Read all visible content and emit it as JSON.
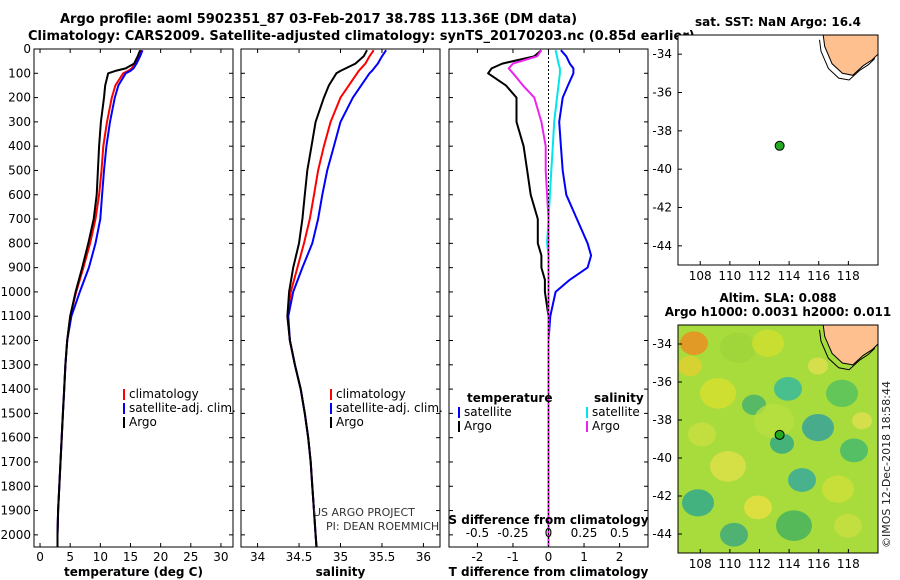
{
  "header": {
    "title_line1": "Argo profile: aoml 5902351_87 03-Feb-2017 38.78S 113.36E (DM data)",
    "title_line2": "Climatology: CARS2009. Satellite-adjusted climatology: synTS_20170203.nc (0.85d earlier)"
  },
  "watermark": "©IMOS 12-Dec-2018 18:58:44",
  "colors": {
    "climatology": "#ff0000",
    "satellite": "#0000ff",
    "argo": "#000000",
    "sal_sat": "#00e5ee",
    "sal_argo": "#ee22ee",
    "land": "#fdc08e",
    "point": "#22aa22"
  },
  "chart_data": [
    {
      "type": "line",
      "id": "temperature",
      "xlabel": "temperature (deg C)",
      "ylabel": "",
      "xlim": [
        -1,
        32
      ],
      "ylim": [
        2050,
        0
      ],
      "xticks": [
        "0",
        "5",
        "10",
        "15",
        "20",
        "25",
        "30"
      ],
      "yticks": [
        "0",
        "100",
        "200",
        "300",
        "400",
        "500",
        "600",
        "700",
        "800",
        "900",
        "1000",
        "1100",
        "1200",
        "1300",
        "1400",
        "1500",
        "1600",
        "1700",
        "1800",
        "1900",
        "2000"
      ],
      "depth": [
        5,
        30,
        60,
        80,
        90,
        100,
        150,
        200,
        300,
        400,
        500,
        600,
        700,
        800,
        900,
        1000,
        1100,
        1200,
        1300,
        1400,
        1500,
        1600,
        1700,
        1800,
        1900,
        2000,
        2050
      ],
      "series": [
        {
          "name": "climatology",
          "color_key": "climatology",
          "values": [
            16.8,
            16.3,
            15.8,
            15.2,
            14.6,
            13.8,
            12.5,
            11.9,
            11.1,
            10.5,
            10.2,
            9.8,
            9.2,
            8.3,
            7.2,
            6.0,
            5.0,
            4.5,
            4.2,
            4.0,
            3.8,
            3.6,
            3.4,
            3.2,
            3.0,
            2.9,
            2.9
          ]
        },
        {
          "name": "satellite-adj. clim.",
          "color_key": "satellite",
          "values": [
            17.0,
            16.6,
            16.0,
            15.5,
            15.0,
            14.2,
            13.0,
            12.4,
            11.6,
            11.0,
            10.6,
            10.3,
            10.0,
            9.2,
            8.1,
            6.6,
            5.2,
            4.5,
            4.2,
            4.0,
            3.8,
            3.6,
            3.4,
            3.2,
            3.0,
            2.9,
            2.9
          ]
        },
        {
          "name": "Argo",
          "color_key": "argo",
          "values": [
            16.6,
            16.2,
            15.6,
            14.2,
            12.5,
            11.3,
            10.8,
            10.6,
            10.1,
            9.8,
            9.6,
            9.4,
            8.9,
            8.0,
            7.0,
            5.9,
            5.0,
            4.5,
            4.2,
            4.0,
            3.8,
            3.6,
            3.4,
            3.2,
            3.0,
            2.9,
            2.9
          ]
        }
      ],
      "legend": [
        "climatology",
        "satellite-adj. clim.",
        "Argo"
      ],
      "legend_position": "bottom-right"
    },
    {
      "type": "line",
      "id": "salinity",
      "xlabel": "salinity",
      "ylabel": "",
      "xlim": [
        33.8,
        36.2
      ],
      "ylim": [
        2050,
        0
      ],
      "xticks": [
        "34",
        "34.5",
        "35",
        "35.5",
        "36"
      ],
      "depth": [
        5,
        30,
        60,
        90,
        100,
        150,
        200,
        300,
        400,
        500,
        600,
        700,
        800,
        900,
        1000,
        1100,
        1200,
        1300,
        1400,
        1500,
        1600,
        1700,
        1800,
        1900,
        2000,
        2050
      ],
      "series": [
        {
          "name": "climatology",
          "color_key": "climatology",
          "values": [
            35.4,
            35.35,
            35.3,
            35.22,
            35.2,
            35.1,
            35.0,
            34.88,
            34.8,
            34.73,
            34.68,
            34.63,
            34.56,
            34.48,
            34.4,
            34.36,
            34.39,
            34.45,
            34.52,
            34.57,
            34.61,
            34.64,
            34.66,
            34.68,
            34.7,
            34.71
          ]
        },
        {
          "name": "satellite-adj. clim.",
          "color_key": "satellite",
          "values": [
            35.55,
            35.5,
            35.45,
            35.38,
            35.35,
            35.25,
            35.15,
            35.0,
            34.92,
            34.84,
            34.78,
            34.73,
            34.66,
            34.54,
            34.43,
            34.37,
            34.39,
            34.45,
            34.52,
            34.57,
            34.61,
            34.64,
            34.66,
            34.68,
            34.7,
            34.71
          ]
        },
        {
          "name": "Argo",
          "color_key": "argo",
          "values": [
            35.32,
            35.28,
            35.18,
            35.0,
            34.95,
            34.86,
            34.8,
            34.7,
            34.65,
            34.6,
            34.57,
            34.54,
            34.5,
            34.43,
            34.38,
            34.36,
            34.39,
            34.45,
            34.52,
            34.57,
            34.61,
            34.64,
            34.66,
            34.68,
            34.7,
            34.71
          ]
        }
      ],
      "legend": [
        "climatology",
        "satellite-adj. clim.",
        "Argo"
      ],
      "legend_position": "bottom-right",
      "annotations": [
        "US ARGO PROJECT",
        "PI: DEAN ROEMMICH"
      ]
    },
    {
      "type": "line",
      "id": "difference",
      "xlabel": "T difference from climatology",
      "xlabel_top": "S difference from climatology",
      "xlim": [
        -2.8,
        2.8
      ],
      "ylim": [
        2050,
        0
      ],
      "xticks": [
        "-2",
        "-1",
        "0",
        "1",
        "2"
      ],
      "xticks_s": [
        "-0.5",
        "-0.25",
        "0",
        "0.25",
        "0.5"
      ],
      "s_scale": 4,
      "depth": [
        5,
        30,
        60,
        80,
        100,
        150,
        200,
        300,
        400,
        500,
        600,
        700,
        800,
        850,
        900,
        950,
        1000,
        1100,
        1200,
        1400,
        1600,
        1800,
        2000,
        2050
      ],
      "series": [
        {
          "name": "temperature satellite",
          "color_key": "satellite",
          "quantity": "T",
          "values": [
            0.35,
            0.5,
            0.6,
            0.7,
            0.7,
            0.55,
            0.4,
            0.3,
            0.35,
            0.4,
            0.5,
            0.8,
            1.1,
            1.2,
            1.1,
            0.6,
            0.2,
            0.05,
            0.0,
            0.0,
            0.0,
            0.0,
            0.0,
            0.0
          ]
        },
        {
          "name": "temperature Argo",
          "color_key": "argo",
          "quantity": "T",
          "values": [
            -0.2,
            -0.4,
            -1.3,
            -1.6,
            -1.7,
            -1.2,
            -0.9,
            -0.9,
            -0.7,
            -0.6,
            -0.5,
            -0.3,
            -0.3,
            -0.2,
            -0.2,
            -0.1,
            -0.1,
            0.0,
            0.0,
            0.0,
            0.0,
            0.0,
            0.0,
            0.0
          ]
        },
        {
          "name": "salinity satellite",
          "color_key": "sal_sat",
          "quantity": "S",
          "values": [
            0.05,
            0.06,
            0.07,
            0.08,
            0.08,
            0.07,
            0.06,
            0.04,
            0.03,
            0.02,
            0.01,
            0.0,
            -0.01,
            0.0,
            0.0,
            0.0,
            0.0,
            0.0,
            0.0,
            0.0,
            0.0,
            0.0,
            0.0,
            0.0
          ]
        },
        {
          "name": "salinity Argo",
          "color_key": "sal_argo",
          "quantity": "S",
          "values": [
            -0.05,
            -0.08,
            -0.25,
            -0.28,
            -0.25,
            -0.18,
            -0.1,
            -0.05,
            -0.02,
            -0.02,
            -0.01,
            0.0,
            0.0,
            0.0,
            0.0,
            0.0,
            0.0,
            0.0,
            0.0,
            0.0,
            0.0,
            0.0,
            0.0,
            0.0
          ]
        }
      ],
      "legend_left_title": "temperature",
      "legend_right_title": "salinity",
      "legend_left": [
        "satellite",
        "Argo"
      ],
      "legend_right": [
        "satellite",
        "Argo"
      ]
    },
    {
      "type": "map",
      "id": "sst-map",
      "title": "sat. SST: NaN Argo: 16.4",
      "xlim": [
        106.5,
        120
      ],
      "ylim": [
        -45,
        -33
      ],
      "xticks": [
        "108",
        "110",
        "112",
        "114",
        "116",
        "118"
      ],
      "yticks": [
        "-34",
        "-36",
        "-38",
        "-40",
        "-42",
        "-44"
      ],
      "profile_point": {
        "lon": 113.36,
        "lat": -38.78
      }
    },
    {
      "type": "heatmap",
      "id": "sla-map",
      "title_line1": "Altim. SLA: 0.088",
      "title_line2": "Argo h1000: 0.0031 h2000: 0.011",
      "xlim": [
        106.5,
        120
      ],
      "ylim": [
        -45,
        -33
      ],
      "xticks": [
        "108",
        "110",
        "112",
        "114",
        "116",
        "118"
      ],
      "yticks": [
        "-34",
        "-36",
        "-38",
        "-40",
        "-42",
        "-44"
      ],
      "profile_point": {
        "lon": 113.36,
        "lat": -38.78
      }
    }
  ]
}
